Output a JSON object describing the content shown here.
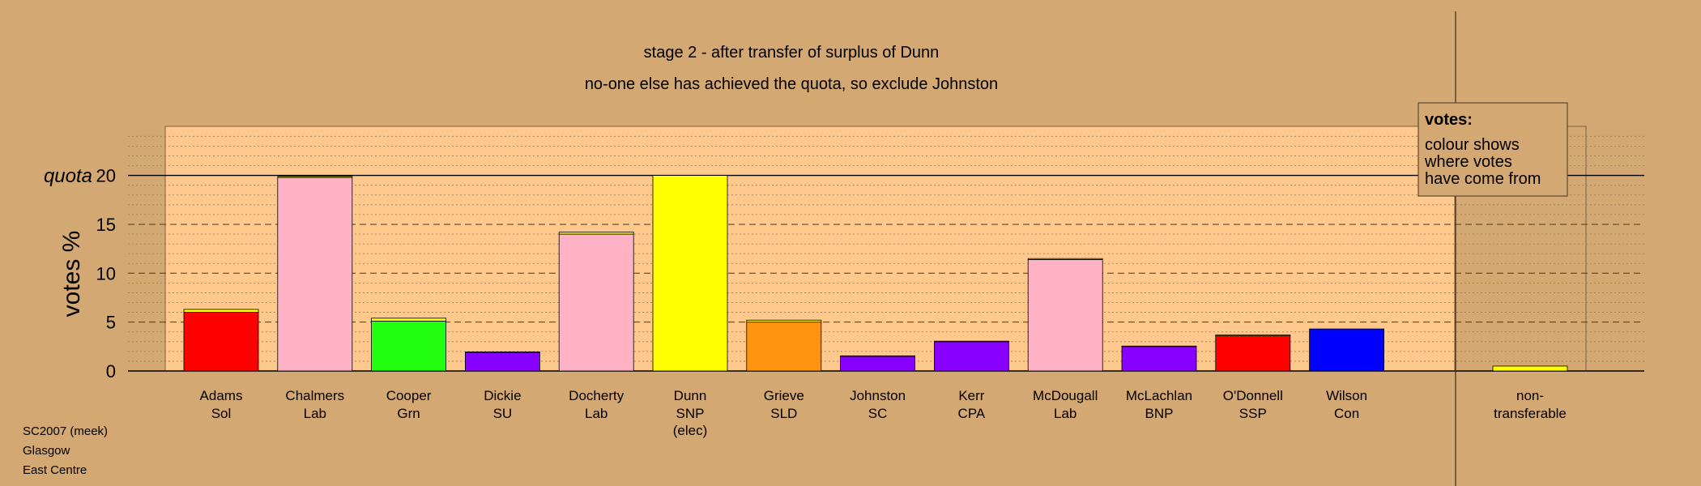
{
  "chart_data": {
    "type": "bar",
    "title": "stage 2 - after transfer of surplus of Dunn",
    "subtitle": "no-one else has achieved the quota, so exclude Johnston",
    "ylabel": "votes %",
    "ylim": [
      0,
      25
    ],
    "yticks": [
      0,
      5,
      10,
      15,
      20
    ],
    "quota": {
      "label": "quota",
      "value": 20
    },
    "grid": true,
    "categories": [
      {
        "name": "Adams",
        "party": "Sol",
        "values": [
          6.0,
          0.3
        ],
        "colors": [
          "#ff0000",
          "#ffff00"
        ]
      },
      {
        "name": "Chalmers",
        "party": "Lab",
        "values": [
          19.8,
          0.1
        ],
        "colors": [
          "#ffb1c5",
          "#ffff00"
        ]
      },
      {
        "name": "Cooper",
        "party": "Grn",
        "values": [
          5.1,
          0.3
        ],
        "colors": [
          "#22ff11",
          "#ffff00"
        ]
      },
      {
        "name": "Dickie",
        "party": "SU",
        "values": [
          1.9,
          0.05
        ],
        "colors": [
          "#8800ff",
          "#ffff00"
        ]
      },
      {
        "name": "Docherty",
        "party": "Lab",
        "values": [
          14.0,
          0.2
        ],
        "colors": [
          "#ffb1c5",
          "#ffff00"
        ]
      },
      {
        "name": "Dunn",
        "party": "SNP",
        "extra": "(elec)",
        "values": [
          20.0
        ],
        "colors": [
          "#ffff00"
        ]
      },
      {
        "name": "Grieve",
        "party": "SLD",
        "values": [
          5.0,
          0.2
        ],
        "colors": [
          "#ff9410",
          "#ffff00"
        ]
      },
      {
        "name": "Johnston",
        "party": "SC",
        "values": [
          1.5,
          0.05
        ],
        "colors": [
          "#8800ff",
          "#ffff00"
        ]
      },
      {
        "name": "Kerr",
        "party": "CPA",
        "values": [
          3.0,
          0.05
        ],
        "colors": [
          "#8800ff",
          "#ffff00"
        ]
      },
      {
        "name": "McDougall",
        "party": "Lab",
        "values": [
          11.4,
          0.1
        ],
        "colors": [
          "#ffb1c5",
          "#ffff00"
        ]
      },
      {
        "name": "McLachlan",
        "party": "BNP",
        "values": [
          2.5,
          0.05
        ],
        "colors": [
          "#8800ff",
          "#ffff00"
        ]
      },
      {
        "name": "O'Donnell",
        "party": "SSP",
        "values": [
          3.6,
          0.1
        ],
        "colors": [
          "#ff0000",
          "#ffff00"
        ]
      },
      {
        "name": "Wilson",
        "party": "Con",
        "values": [
          4.3
        ],
        "colors": [
          "#0000ff"
        ]
      }
    ],
    "nontransferable": {
      "line1": "non-",
      "line2": "transferable",
      "value": 0.5,
      "color": "#ffff00"
    },
    "legend": {
      "title": "votes:",
      "lines": [
        "colour shows",
        "where votes",
        "have come from"
      ],
      "placement": "top-right"
    }
  },
  "footer": {
    "lines": [
      "SC2007 (meek)",
      "Glasgow",
      "East Centre"
    ]
  },
  "colors": {
    "background": "#d4a873",
    "plot_background": "#ffc88c"
  }
}
